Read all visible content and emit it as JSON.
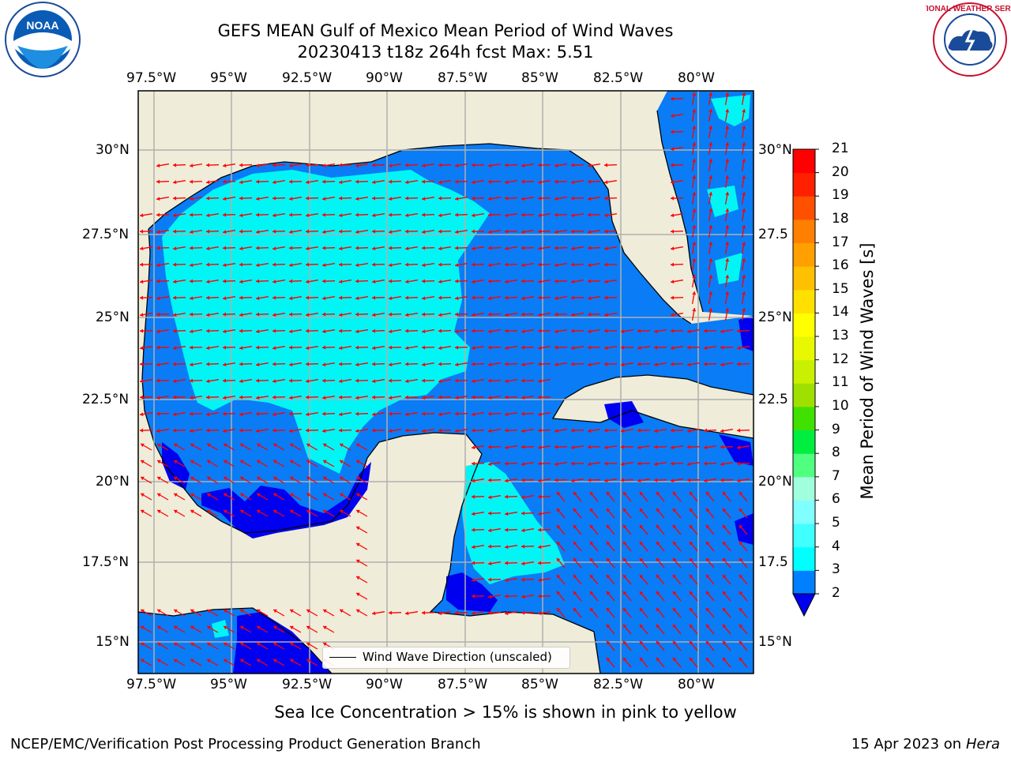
{
  "header": {
    "title_line1": "GEFS MEAN Gulf of Mexico Mean Period of Wind Waves",
    "title_line2": "20230413 t18z 264h fcst   Max: 5.51"
  },
  "axes": {
    "lon_labels": [
      "97.5°W",
      "95°W",
      "92.5°W",
      "90°W",
      "87.5°W",
      "85°W",
      "82.5°W",
      "80°W"
    ],
    "lat_labels_left": [
      "30°N",
      "27.5°N",
      "25°N",
      "22.5°N",
      "20°N",
      "17.5°N",
      "15°N"
    ],
    "lat_labels_right": [
      "30°N",
      "27.5",
      "25°N",
      "22.5",
      "20°N",
      "17.5",
      "15°N"
    ]
  },
  "colorbar": {
    "label": "Mean Period of Wind Waves [s]",
    "ticks": [
      "21",
      "20",
      "19",
      "18",
      "17",
      "16",
      "15",
      "14",
      "13",
      "12",
      "11",
      "10",
      "9",
      "8",
      "7",
      "6",
      "5",
      "4",
      "3",
      "2"
    ],
    "colors": [
      "#0000ee",
      "#0080ff",
      "#00ffff",
      "#40ffff",
      "#80ffff",
      "#a0ffdd",
      "#50ff80",
      "#00ee40",
      "#40e000",
      "#a0e000",
      "#c8f000",
      "#e8f800",
      "#ffff00",
      "#ffe000",
      "#ffc000",
      "#ffa000",
      "#ff8000",
      "#ff5000",
      "#ff2000",
      "#ff0000"
    ]
  },
  "legend": {
    "label": "Wind Wave Direction (unscaled)"
  },
  "footer": {
    "ice_note": "Sea Ice Concentration > 15% is shown in pink to yellow",
    "org": "NCEP/EMC/Verification Post Processing Product Generation Branch",
    "date": "15 Apr 2023 on ",
    "machine": "Hera"
  },
  "logos": {
    "noaa": "NOAA",
    "nws": "NATIONAL WEATHER SERVICE"
  },
  "map_colors": {
    "land": "#efecd9",
    "ocean_mid": "#0a7cf5",
    "ocean_low": "#0000f0",
    "ocean_high": "#00f5f5",
    "arrows": "#ff0000",
    "grid": "#b0b0b0"
  }
}
